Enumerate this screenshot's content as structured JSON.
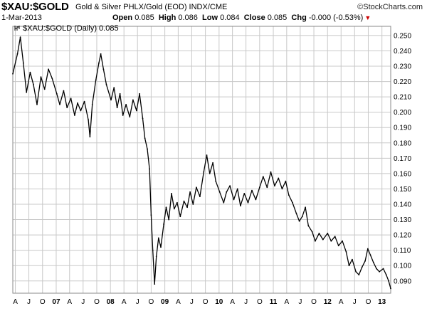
{
  "header": {
    "symbol": "$XAU:$GOLD",
    "description": "Gold & Silver PHLX/Gold (EOD)  INDX/CME",
    "logo": "©StockCharts.com",
    "date": "1-Mar-2013",
    "open_label": "Open",
    "open": "0.085",
    "high_label": "High",
    "high": "0.086",
    "low_label": "Low",
    "low": "0.084",
    "close_label": "Close",
    "close": "0.085",
    "chg_label": "Chg",
    "chg": "-0.000 (-0.53%)",
    "chg_color": "#cc0000"
  },
  "legend": {
    "text": "$XAU:$GOLD (Daily) 0.085"
  },
  "chart_data": {
    "type": "line",
    "series": [
      {
        "name": "$XAU:$GOLD (Daily)",
        "color": "#000000",
        "points": [
          [
            "2006-03-15",
            0.225
          ],
          [
            "2006-04-15",
            0.238
          ],
          [
            "2006-05-05",
            0.249
          ],
          [
            "2006-05-25",
            0.232
          ],
          [
            "2006-06-15",
            0.213
          ],
          [
            "2006-07-10",
            0.226
          ],
          [
            "2006-08-01",
            0.218
          ],
          [
            "2006-08-25",
            0.205
          ],
          [
            "2006-09-20",
            0.223
          ],
          [
            "2006-10-15",
            0.215
          ],
          [
            "2006-11-10",
            0.228
          ],
          [
            "2006-12-05",
            0.222
          ],
          [
            "2007-01-05",
            0.212
          ],
          [
            "2007-01-25",
            0.205
          ],
          [
            "2007-02-20",
            0.214
          ],
          [
            "2007-03-15",
            0.203
          ],
          [
            "2007-04-10",
            0.209
          ],
          [
            "2007-05-05",
            0.198
          ],
          [
            "2007-05-25",
            0.206
          ],
          [
            "2007-06-15",
            0.201
          ],
          [
            "2007-07-10",
            0.207
          ],
          [
            "2007-08-05",
            0.195
          ],
          [
            "2007-08-16",
            0.184
          ],
          [
            "2007-09-01",
            0.205
          ],
          [
            "2007-09-25",
            0.221
          ],
          [
            "2007-10-15",
            0.232
          ],
          [
            "2007-10-28",
            0.238
          ],
          [
            "2007-11-15",
            0.228
          ],
          [
            "2007-12-05",
            0.218
          ],
          [
            "2008-01-05",
            0.208
          ],
          [
            "2008-01-25",
            0.216
          ],
          [
            "2008-02-15",
            0.203
          ],
          [
            "2008-03-05",
            0.212
          ],
          [
            "2008-03-25",
            0.198
          ],
          [
            "2008-04-15",
            0.205
          ],
          [
            "2008-05-10",
            0.197
          ],
          [
            "2008-06-01",
            0.208
          ],
          [
            "2008-06-25",
            0.201
          ],
          [
            "2008-07-15",
            0.212
          ],
          [
            "2008-08-05",
            0.196
          ],
          [
            "2008-08-20",
            0.183
          ],
          [
            "2008-09-05",
            0.176
          ],
          [
            "2008-09-20",
            0.163
          ],
          [
            "2008-10-01",
            0.133
          ],
          [
            "2008-10-12",
            0.11
          ],
          [
            "2008-10-24",
            0.088
          ],
          [
            "2008-11-05",
            0.106
          ],
          [
            "2008-11-20",
            0.118
          ],
          [
            "2008-12-05",
            0.112
          ],
          [
            "2008-12-25",
            0.127
          ],
          [
            "2009-01-10",
            0.138
          ],
          [
            "2009-01-28",
            0.13
          ],
          [
            "2009-02-15",
            0.147
          ],
          [
            "2009-03-05",
            0.137
          ],
          [
            "2009-03-25",
            0.141
          ],
          [
            "2009-04-15",
            0.132
          ],
          [
            "2009-05-10",
            0.142
          ],
          [
            "2009-06-01",
            0.138
          ],
          [
            "2009-06-20",
            0.148
          ],
          [
            "2009-07-10",
            0.14
          ],
          [
            "2009-08-01",
            0.151
          ],
          [
            "2009-08-25",
            0.145
          ],
          [
            "2009-09-20",
            0.161
          ],
          [
            "2009-10-10",
            0.172
          ],
          [
            "2009-10-30",
            0.16
          ],
          [
            "2009-11-20",
            0.167
          ],
          [
            "2009-12-10",
            0.155
          ],
          [
            "2010-01-05",
            0.148
          ],
          [
            "2010-02-01",
            0.141
          ],
          [
            "2010-02-20",
            0.148
          ],
          [
            "2010-03-15",
            0.152
          ],
          [
            "2010-04-10",
            0.143
          ],
          [
            "2010-05-05",
            0.15
          ],
          [
            "2010-05-25",
            0.139
          ],
          [
            "2010-06-20",
            0.147
          ],
          [
            "2010-07-15",
            0.141
          ],
          [
            "2010-08-10",
            0.149
          ],
          [
            "2010-09-05",
            0.143
          ],
          [
            "2010-10-01",
            0.151
          ],
          [
            "2010-10-25",
            0.158
          ],
          [
            "2010-11-20",
            0.151
          ],
          [
            "2010-12-15",
            0.161
          ],
          [
            "2011-01-10",
            0.152
          ],
          [
            "2011-02-05",
            0.157
          ],
          [
            "2011-03-01",
            0.15
          ],
          [
            "2011-03-25",
            0.155
          ],
          [
            "2011-04-15",
            0.146
          ],
          [
            "2011-05-10",
            0.141
          ],
          [
            "2011-06-05",
            0.134
          ],
          [
            "2011-06-25",
            0.129
          ],
          [
            "2011-07-15",
            0.132
          ],
          [
            "2011-08-05",
            0.138
          ],
          [
            "2011-08-25",
            0.126
          ],
          [
            "2011-09-20",
            0.122
          ],
          [
            "2011-10-10",
            0.116
          ],
          [
            "2011-11-05",
            0.121
          ],
          [
            "2011-12-01",
            0.117
          ],
          [
            "2012-01-01",
            0.121
          ],
          [
            "2012-01-25",
            0.116
          ],
          [
            "2012-02-20",
            0.119
          ],
          [
            "2012-03-15",
            0.113
          ],
          [
            "2012-04-10",
            0.116
          ],
          [
            "2012-05-05",
            0.109
          ],
          [
            "2012-05-25",
            0.1
          ],
          [
            "2012-06-15",
            0.104
          ],
          [
            "2012-07-10",
            0.096
          ],
          [
            "2012-07-30",
            0.094
          ],
          [
            "2012-08-20",
            0.099
          ],
          [
            "2012-09-10",
            0.103
          ],
          [
            "2012-09-28",
            0.111
          ],
          [
            "2012-10-15",
            0.107
          ],
          [
            "2012-11-05",
            0.102
          ],
          [
            "2012-11-25",
            0.098
          ],
          [
            "2012-12-15",
            0.096
          ],
          [
            "2013-01-10",
            0.098
          ],
          [
            "2013-01-30",
            0.094
          ],
          [
            "2013-02-15",
            0.09
          ],
          [
            "2013-03-01",
            0.085
          ]
        ]
      }
    ],
    "x_start": "2006-03-15",
    "x_end": "2013-03-01",
    "x_ticks": [
      {
        "label": "A",
        "date": "2006-04-01",
        "bold": false
      },
      {
        "label": "J",
        "date": "2006-07-01",
        "bold": false
      },
      {
        "label": "O",
        "date": "2006-10-01",
        "bold": false
      },
      {
        "label": "07",
        "date": "2007-01-01",
        "bold": true
      },
      {
        "label": "A",
        "date": "2007-04-01",
        "bold": false
      },
      {
        "label": "J",
        "date": "2007-07-01",
        "bold": false
      },
      {
        "label": "O",
        "date": "2007-10-01",
        "bold": false
      },
      {
        "label": "08",
        "date": "2008-01-01",
        "bold": true
      },
      {
        "label": "A",
        "date": "2008-04-01",
        "bold": false
      },
      {
        "label": "J",
        "date": "2008-07-01",
        "bold": false
      },
      {
        "label": "O",
        "date": "2008-10-01",
        "bold": false
      },
      {
        "label": "09",
        "date": "2009-01-01",
        "bold": true
      },
      {
        "label": "A",
        "date": "2009-04-01",
        "bold": false
      },
      {
        "label": "J",
        "date": "2009-07-01",
        "bold": false
      },
      {
        "label": "O",
        "date": "2009-10-01",
        "bold": false
      },
      {
        "label": "10",
        "date": "2010-01-01",
        "bold": true
      },
      {
        "label": "A",
        "date": "2010-04-01",
        "bold": false
      },
      {
        "label": "J",
        "date": "2010-07-01",
        "bold": false
      },
      {
        "label": "O",
        "date": "2010-10-01",
        "bold": false
      },
      {
        "label": "11",
        "date": "2011-01-01",
        "bold": true
      },
      {
        "label": "A",
        "date": "2011-04-01",
        "bold": false
      },
      {
        "label": "J",
        "date": "2011-07-01",
        "bold": false
      },
      {
        "label": "O",
        "date": "2011-10-01",
        "bold": false
      },
      {
        "label": "12",
        "date": "2012-01-01",
        "bold": true
      },
      {
        "label": "A",
        "date": "2012-04-01",
        "bold": false
      },
      {
        "label": "J",
        "date": "2012-07-01",
        "bold": false
      },
      {
        "label": "O",
        "date": "2012-10-01",
        "bold": false
      },
      {
        "label": "13",
        "date": "2013-01-01",
        "bold": true
      }
    ],
    "y_ticks": [
      0.09,
      0.1,
      0.11,
      0.12,
      0.13,
      0.14,
      0.15,
      0.16,
      0.17,
      0.18,
      0.19,
      0.2,
      0.21,
      0.22,
      0.23,
      0.24,
      0.25
    ],
    "ylim": [
      0.082,
      0.256
    ],
    "grid": true,
    "y_axis_side": "right"
  }
}
